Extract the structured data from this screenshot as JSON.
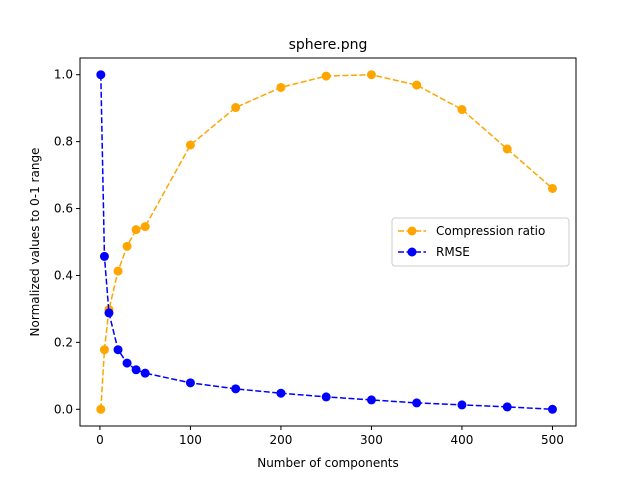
{
  "chart_data": {
    "type": "line",
    "title": "sphere.png",
    "xlabel": "Number of components",
    "ylabel": "Normalized values to 0-1 range",
    "xlim": [
      -22,
      526
    ],
    "ylim": [
      -0.05,
      1.05
    ],
    "xticks": [
      0,
      100,
      200,
      300,
      400,
      500
    ],
    "yticks": [
      0.0,
      0.2,
      0.4,
      0.6,
      0.8,
      1.0
    ],
    "xtick_labels": [
      "0",
      "100",
      "200",
      "300",
      "400",
      "500"
    ],
    "ytick_labels": [
      "0.0",
      "0.2",
      "0.4",
      "0.6",
      "0.8",
      "1.0"
    ],
    "grid": false,
    "legend_position": "center-right",
    "x": [
      1,
      5,
      10,
      20,
      30,
      40,
      50,
      100,
      150,
      200,
      250,
      300,
      350,
      400,
      450,
      500
    ],
    "series": [
      {
        "name": "Compression ratio",
        "color": "#ffa500",
        "line_style": "dashed",
        "marker": "circle",
        "values": [
          0.0,
          0.178,
          0.298,
          0.413,
          0.487,
          0.537,
          0.546,
          0.79,
          0.902,
          0.962,
          0.996,
          1.0,
          0.969,
          0.896,
          0.778,
          0.66
        ]
      },
      {
        "name": "RMSE",
        "color": "#0000ff",
        "line_style": "dashed",
        "marker": "circle",
        "values": [
          1.0,
          0.457,
          0.288,
          0.178,
          0.138,
          0.118,
          0.108,
          0.079,
          0.061,
          0.048,
          0.037,
          0.028,
          0.019,
          0.013,
          0.007,
          0.0
        ]
      }
    ]
  }
}
